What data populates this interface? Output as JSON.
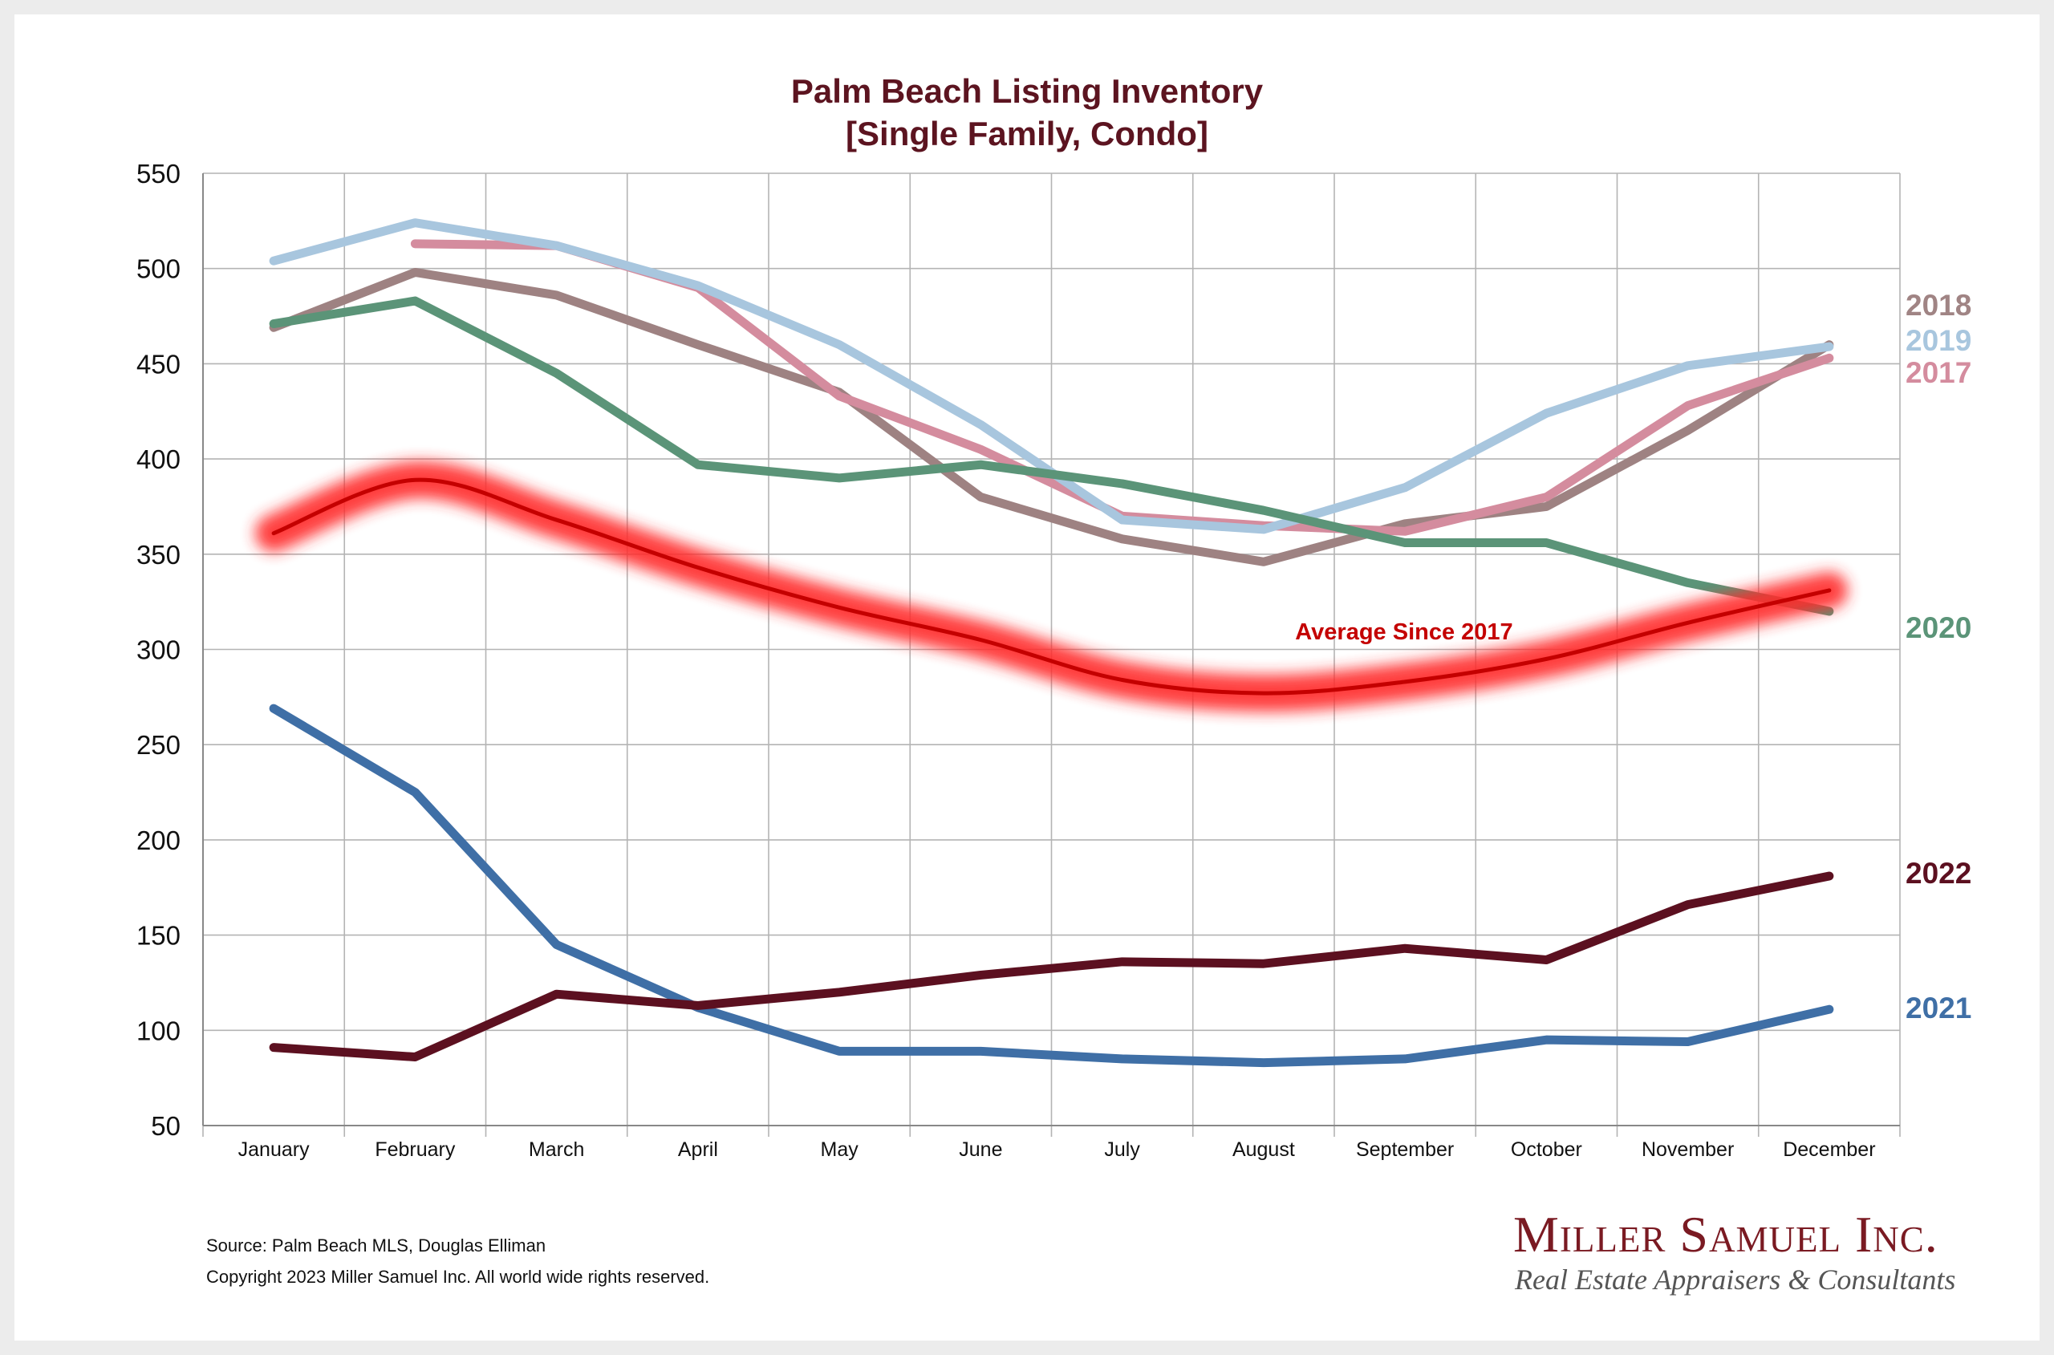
{
  "chart_data": {
    "type": "line",
    "title": "Palm Beach Listing Inventory",
    "subtitle": "[Single Family, Condo]",
    "categories": [
      "January",
      "February",
      "March",
      "April",
      "May",
      "June",
      "July",
      "August",
      "September",
      "October",
      "November",
      "December"
    ],
    "ylim": [
      50,
      550
    ],
    "yticks": [
      50,
      100,
      150,
      200,
      250,
      300,
      350,
      400,
      450,
      500,
      550
    ],
    "grid": true,
    "series": [
      {
        "name": "2017",
        "color": "#d48c9e",
        "values": [
          null,
          513,
          512,
          490,
          433,
          405,
          370,
          365,
          362,
          380,
          428,
          453
        ]
      },
      {
        "name": "2018",
        "color": "#9e8282",
        "values": [
          469,
          498,
          486,
          460,
          435,
          380,
          358,
          346,
          366,
          375,
          415,
          460
        ]
      },
      {
        "name": "2019",
        "color": "#a8c6de",
        "values": [
          504,
          524,
          512,
          491,
          460,
          418,
          368,
          363,
          385,
          424,
          449,
          459
        ]
      },
      {
        "name": "2020",
        "color": "#5b9478",
        "values": [
          471,
          483,
          445,
          397,
          390,
          397,
          387,
          373,
          356,
          356,
          335,
          320
        ]
      },
      {
        "name": "2021",
        "color": "#3f6fa6",
        "values": [
          269,
          225,
          145,
          112,
          89,
          89,
          85,
          83,
          85,
          95,
          94,
          111
        ]
      },
      {
        "name": "2022",
        "color": "#5c1020",
        "values": [
          91,
          86,
          119,
          113,
          120,
          129,
          136,
          135,
          143,
          137,
          166,
          181
        ]
      },
      {
        "name": "Average  Since 2017",
        "color": "#c40000",
        "glow": "#ff2a2a",
        "values": [
          361,
          389,
          368,
          343,
          322,
          305,
          284,
          277,
          283,
          295,
          314,
          331
        ]
      }
    ],
    "annotation": "Average  Since 2017"
  },
  "legend": {
    "labels": [
      {
        "text": "2018",
        "color": "#a08484"
      },
      {
        "text": "2019",
        "color": "#a8c6de"
      },
      {
        "text": "2017",
        "color": "#d48c9e"
      },
      {
        "text": "2020",
        "color": "#5b9478"
      },
      {
        "text": "2022",
        "color": "#5c1020"
      },
      {
        "text": "2021",
        "color": "#3f6fa6"
      }
    ]
  },
  "footer": {
    "source": "Source: Palm Beach MLS, Douglas Elliman",
    "copyright": "Copyright 2023 Miller Samuel Inc.  All world wide rights reserved."
  },
  "brand": {
    "name": "Miller Samuel Inc.",
    "tagline": "Real Estate Appraisers & Consultants"
  }
}
